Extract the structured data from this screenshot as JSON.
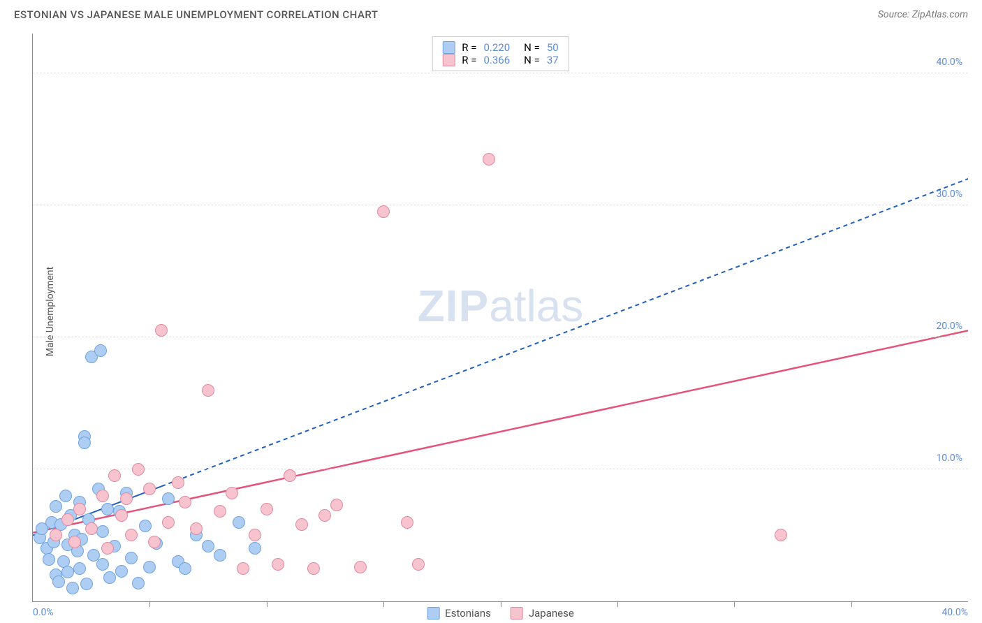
{
  "title": "ESTONIAN VS JAPANESE MALE UNEMPLOYMENT CORRELATION CHART",
  "source_label": "Source: ZipAtlas.com",
  "y_axis_label": "Male Unemployment",
  "watermark": {
    "bold": "ZIP",
    "light": "atlas"
  },
  "chart": {
    "type": "scatter",
    "background_color": "#ffffff",
    "grid_color": "#dddddd",
    "axis_color": "#888888",
    "tick_label_color": "#5b8dd6",
    "tick_fontsize": 14,
    "title_fontsize": 15,
    "x_range": [
      0,
      40
    ],
    "y_range": [
      0,
      43
    ],
    "y_ticks": [
      10,
      20,
      30,
      40
    ],
    "y_tick_labels": [
      "10.0%",
      "20.0%",
      "30.0%",
      "40.0%"
    ],
    "x_ticks": [
      0,
      20,
      40
    ],
    "x_tick_labels": [
      "0.0%",
      "",
      "40.0%"
    ],
    "x_minor_ticks": [
      5,
      10,
      15,
      20,
      25,
      30,
      35
    ],
    "series": [
      {
        "name": "Estonians",
        "marker_color_fill": "#aecdf2",
        "marker_color_stroke": "#6fa3e0",
        "marker_radius": 9,
        "trend_color": "#1f5fbf",
        "trend_dash": "6,5",
        "trend_width": 2,
        "trend_start": [
          0,
          5.0
        ],
        "trend_end": [
          40,
          32.0
        ],
        "trend_solid_end_x": 5.5,
        "r_value": "0.220",
        "n_value": "50",
        "points": [
          [
            0.3,
            4.8
          ],
          [
            0.4,
            5.5
          ],
          [
            0.6,
            4.0
          ],
          [
            0.7,
            3.2
          ],
          [
            0.8,
            6.0
          ],
          [
            0.9,
            4.5
          ],
          [
            1.0,
            2.0
          ],
          [
            1.0,
            7.2
          ],
          [
            1.1,
            1.5
          ],
          [
            1.2,
            5.8
          ],
          [
            1.3,
            3.0
          ],
          [
            1.4,
            8.0
          ],
          [
            1.5,
            4.3
          ],
          [
            1.5,
            2.2
          ],
          [
            1.6,
            6.5
          ],
          [
            1.7,
            1.0
          ],
          [
            1.8,
            5.0
          ],
          [
            1.9,
            3.8
          ],
          [
            2.0,
            7.5
          ],
          [
            2.0,
            2.5
          ],
          [
            2.1,
            4.7
          ],
          [
            2.2,
            12.5
          ],
          [
            2.2,
            12.0
          ],
          [
            2.3,
            1.3
          ],
          [
            2.4,
            6.2
          ],
          [
            2.5,
            18.5
          ],
          [
            2.6,
            3.5
          ],
          [
            2.8,
            8.5
          ],
          [
            2.9,
            19.0
          ],
          [
            3.0,
            2.8
          ],
          [
            3.0,
            5.3
          ],
          [
            3.2,
            7.0
          ],
          [
            3.3,
            1.8
          ],
          [
            3.5,
            4.2
          ],
          [
            3.7,
            6.8
          ],
          [
            3.8,
            2.3
          ],
          [
            4.0,
            8.2
          ],
          [
            4.2,
            3.3
          ],
          [
            4.5,
            1.4
          ],
          [
            4.8,
            5.7
          ],
          [
            5.0,
            2.6
          ],
          [
            5.3,
            4.4
          ],
          [
            5.8,
            7.8
          ],
          [
            6.2,
            3.0
          ],
          [
            6.5,
            2.5
          ],
          [
            7.0,
            5.0
          ],
          [
            7.5,
            4.2
          ],
          [
            8.0,
            3.5
          ],
          [
            8.8,
            6.0
          ],
          [
            9.5,
            4.0
          ]
        ]
      },
      {
        "name": "Japanese",
        "marker_color_fill": "#f6c3cf",
        "marker_color_stroke": "#e08aa0",
        "marker_radius": 9,
        "trend_color": "#e6537a",
        "trend_dash": "none",
        "trend_width": 2.5,
        "trend_start": [
          0,
          5.2
        ],
        "trend_end": [
          40,
          20.5
        ],
        "r_value": "0.366",
        "n_value": "37",
        "points": [
          [
            1.0,
            5.0
          ],
          [
            1.5,
            6.2
          ],
          [
            1.8,
            4.5
          ],
          [
            2.0,
            7.0
          ],
          [
            2.5,
            5.5
          ],
          [
            3.0,
            8.0
          ],
          [
            3.2,
            4.0
          ],
          [
            3.5,
            9.5
          ],
          [
            3.8,
            6.5
          ],
          [
            4.0,
            7.8
          ],
          [
            4.2,
            5.0
          ],
          [
            4.5,
            10.0
          ],
          [
            5.0,
            8.5
          ],
          [
            5.2,
            4.5
          ],
          [
            5.5,
            20.5
          ],
          [
            5.8,
            6.0
          ],
          [
            6.2,
            9.0
          ],
          [
            6.5,
            7.5
          ],
          [
            7.0,
            5.5
          ],
          [
            7.5,
            16.0
          ],
          [
            8.0,
            6.8
          ],
          [
            8.5,
            8.2
          ],
          [
            9.0,
            2.5
          ],
          [
            9.5,
            5.0
          ],
          [
            10.0,
            7.0
          ],
          [
            10.5,
            2.8
          ],
          [
            11.0,
            9.5
          ],
          [
            11.5,
            5.8
          ],
          [
            12.0,
            2.5
          ],
          [
            12.5,
            6.5
          ],
          [
            13.0,
            7.3
          ],
          [
            14.0,
            2.6
          ],
          [
            15.0,
            29.5
          ],
          [
            16.0,
            6.0
          ],
          [
            19.5,
            33.5
          ],
          [
            32.0,
            5.0
          ],
          [
            16.5,
            2.8
          ]
        ]
      }
    ],
    "legend_stats": {
      "r_label": "R =",
      "n_label": "N ="
    },
    "bottom_legend": [
      "Estonians",
      "Japanese"
    ]
  }
}
